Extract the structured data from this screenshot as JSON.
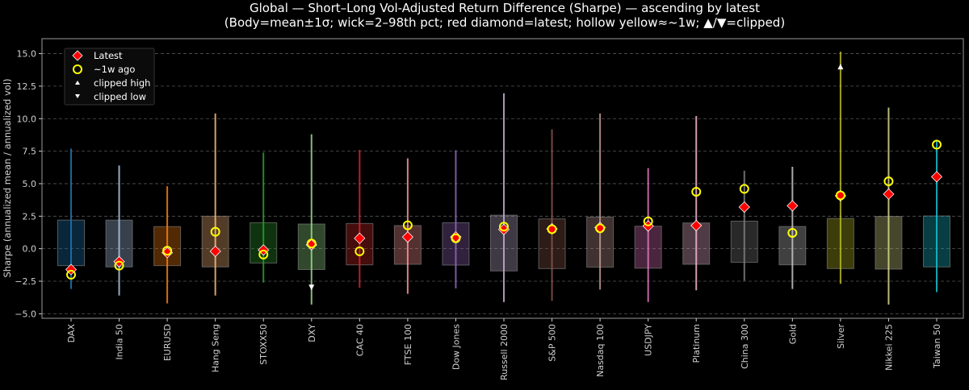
{
  "chart_data": {
    "type": "candlestick-range",
    "title": "Global — Short–Long Vol-Adjusted Return Difference (Sharpe) — ascending by latest",
    "subtitle": "(Body=mean±1σ; wick=2–98th pct; red diamond=latest; hollow yellow≈~1w; ▲/▼=clipped)",
    "xlabel": "",
    "ylabel": "Sharpe (annualized mean / annualized vol)",
    "ylim": [
      -5.35,
      16.15
    ],
    "yticks": [
      "−5.0",
      "−2.5",
      "0.0",
      "2.5",
      "5.0",
      "7.5",
      "10.0",
      "12.5",
      "15.0"
    ],
    "ytick_values": [
      -5,
      -2.5,
      0,
      2.5,
      5,
      7.5,
      10,
      12.5,
      15
    ],
    "grid": "horizontal dashed",
    "legend": {
      "placement": "top-left",
      "entries": [
        "Latest",
        "~1w ago",
        "clipped high",
        "clipped low"
      ]
    },
    "marker_colors": {
      "latest": "#ff0000",
      "week": "#ffff00",
      "clipped": "#ffffff"
    },
    "categories": [
      "DAX",
      "India 50",
      "EURUSD",
      "Hang Seng",
      "STOXX50",
      "DXY",
      "CAC 40",
      "FTSE 100",
      "Dow Jones",
      "Russell 2000",
      "S&P 500",
      "Nasdaq 100",
      "USDJPY",
      "Platinum",
      "China 300",
      "Gold",
      "Silver",
      "Nikkei 225",
      "Taiwan 50"
    ],
    "series": [
      {
        "category": "DAX",
        "color": "#1f77b4",
        "body": [
          -1.3,
          2.2
        ],
        "wick": [
          -3.1,
          7.7
        ],
        "latest": -1.6,
        "week": -2.0
      },
      {
        "category": "India 50",
        "color": "#aec7e8",
        "body": [
          -1.4,
          2.2
        ],
        "wick": [
          -3.6,
          6.4
        ],
        "latest": -1.0,
        "week": -1.3
      },
      {
        "category": "EURUSD",
        "color": "#ff7f0e",
        "body": [
          -1.3,
          1.7
        ],
        "wick": [
          -4.2,
          4.8
        ],
        "latest": -0.3,
        "week": -0.15
      },
      {
        "category": "Hang Seng",
        "color": "#ffbb78",
        "body": [
          -1.4,
          2.5
        ],
        "wick": [
          -3.6,
          10.4
        ],
        "latest": -0.2,
        "week": 1.3
      },
      {
        "category": "STOXX50",
        "color": "#2ca02c",
        "body": [
          -1.1,
          2.0
        ],
        "wick": [
          -2.6,
          7.4
        ],
        "latest": -0.1,
        "week": -0.45
      },
      {
        "category": "DXY",
        "color": "#98df8a",
        "body": [
          -1.6,
          1.9
        ],
        "wick": [
          -4.3,
          8.8
        ],
        "latest": 0.3,
        "week": 0.4,
        "clipped_low": -2.95
      },
      {
        "category": "CAC 40",
        "color": "#d62728",
        "body": [
          -1.24,
          1.94
        ],
        "wick": [
          -3.0,
          7.6
        ],
        "latest": 0.8,
        "week": -0.2
      },
      {
        "category": "FTSE 100",
        "color": "#ff9896",
        "body": [
          -1.2,
          1.78
        ],
        "wick": [
          -3.47,
          6.95
        ],
        "latest": 0.9,
        "week": 1.8
      },
      {
        "category": "Dow Jones",
        "color": "#9467bd",
        "body": [
          -1.26,
          2.0
        ],
        "wick": [
          -3.05,
          7.57
        ],
        "latest": 0.9,
        "week": 0.8
      },
      {
        "category": "Russell 2000",
        "color": "#c5b0d5",
        "body": [
          -1.71,
          2.58
        ],
        "wick": [
          -4.1,
          11.95
        ],
        "latest": 1.48,
        "week": 1.7
      },
      {
        "category": "S&P 500",
        "color": "#8c564b",
        "body": [
          -1.53,
          2.29
        ],
        "wick": [
          -4.0,
          9.18
        ],
        "latest": 1.53,
        "week": 1.5
      },
      {
        "category": "Nasdaq 100",
        "color": "#c49c94",
        "body": [
          -1.42,
          2.43
        ],
        "wick": [
          -3.14,
          10.4
        ],
        "latest": 1.63,
        "week": 1.57
      },
      {
        "category": "USDJPY",
        "color": "#e377c2",
        "body": [
          -1.5,
          1.73
        ],
        "wick": [
          -4.1,
          6.2
        ],
        "latest": 1.75,
        "week": 2.1
      },
      {
        "category": "Platinum",
        "color": "#f7b6d2",
        "body": [
          -1.2,
          1.98
        ],
        "wick": [
          -3.2,
          10.2
        ],
        "latest": 1.78,
        "week": 4.38
      },
      {
        "category": "China 300",
        "color": "#7f7f7f",
        "body": [
          -1.05,
          2.12
        ],
        "wick": [
          -2.46,
          6.0
        ],
        "latest": 3.2,
        "week": 4.6
      },
      {
        "category": "Gold",
        "color": "#c7c7c7",
        "body": [
          -1.24,
          1.71
        ],
        "wick": [
          -3.1,
          6.3
        ],
        "latest": 3.3,
        "week": 1.22
      },
      {
        "category": "Silver",
        "color": "#bcbd22",
        "body": [
          -1.53,
          2.33
        ],
        "wick": [
          -2.7,
          15.15
        ],
        "latest": 4.07,
        "week": 4.1,
        "clipped_high": 13.97
      },
      {
        "category": "Nikkei 225",
        "color": "#dbdb8d",
        "body": [
          -1.57,
          2.48
        ],
        "wick": [
          -4.3,
          10.85
        ],
        "latest": 4.2,
        "week": 5.18
      },
      {
        "category": "Taiwan 50",
        "color": "#17becf",
        "body": [
          -1.4,
          2.52
        ],
        "wick": [
          -3.34,
          8.38
        ],
        "latest": 5.53,
        "week": 8.0
      }
    ]
  }
}
